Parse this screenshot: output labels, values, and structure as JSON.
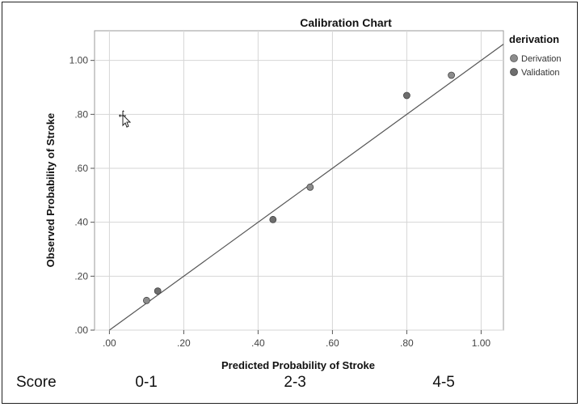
{
  "chart_data": {
    "type": "scatter",
    "title": "Calibration Chart",
    "xlabel": "Predicted Probability of Stroke",
    "ylabel": "Observed Probability of Stroke",
    "xlim": [
      -0.04,
      1.06
    ],
    "ylim": [
      0.0,
      1.11
    ],
    "xticks": [
      ".00",
      ".20",
      ".40",
      ".60",
      ".80",
      "1.00"
    ],
    "yticks": [
      ".00",
      ".20",
      ".40",
      ".60",
      ".80",
      "1.00"
    ],
    "grid": true,
    "legend": {
      "title": "derivation",
      "position": "top-right"
    },
    "series": [
      {
        "name": "Derivation",
        "color": "#8c8c8c",
        "points": [
          [
            0.1,
            0.11
          ],
          [
            0.54,
            0.53
          ],
          [
            0.92,
            0.945
          ]
        ]
      },
      {
        "name": "Validation",
        "color": "#6e6e6e",
        "points": [
          [
            0.13,
            0.145
          ],
          [
            0.44,
            0.41
          ],
          [
            0.8,
            0.87
          ]
        ]
      }
    ],
    "reference_line": {
      "from": [
        0,
        0
      ],
      "to": [
        1.06,
        1.06
      ],
      "color": "#555555"
    }
  },
  "score_row": {
    "label": "Score",
    "groups": [
      {
        "label": "0-1",
        "x": 0.1
      },
      {
        "label": "2-3",
        "x": 0.5
      },
      {
        "label": "4-5",
        "x": 0.9
      }
    ]
  }
}
